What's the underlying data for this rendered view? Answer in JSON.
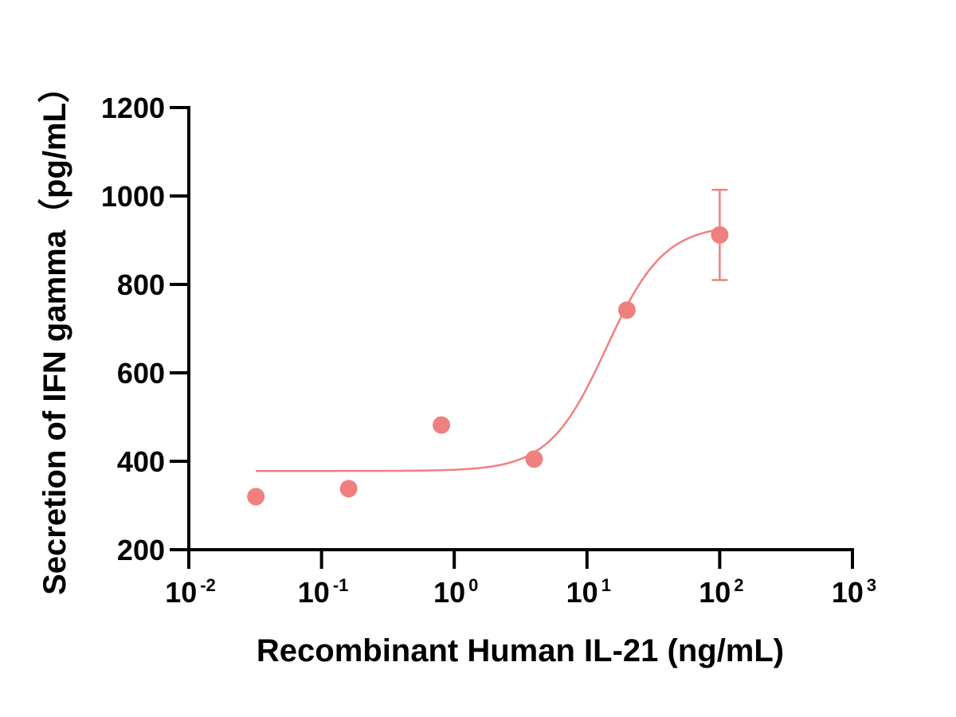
{
  "chart_data": {
    "type": "scatter",
    "xlabel": "Recombinant Human IL-21 (ng/mL)",
    "ylabel": "Secretion of IFN gamma（pg/mL）",
    "x_scale": "log10",
    "xlim": [
      0.01,
      1000
    ],
    "ylim": [
      200,
      1200
    ],
    "x_ticks": [
      {
        "base": "10",
        "exp": "-2"
      },
      {
        "base": "10",
        "exp": "-1"
      },
      {
        "base": "10",
        "exp": "0"
      },
      {
        "base": "10",
        "exp": "1"
      },
      {
        "base": "10",
        "exp": "2"
      },
      {
        "base": "10",
        "exp": "3"
      }
    ],
    "y_ticks": [
      "200",
      "400",
      "600",
      "800",
      "1000",
      "1200"
    ],
    "grid": false,
    "color": "#f08080",
    "points": [
      {
        "x": 0.032,
        "y": 320
      },
      {
        "x": 0.16,
        "y": 338
      },
      {
        "x": 0.8,
        "y": 482
      },
      {
        "x": 4,
        "y": 405
      },
      {
        "x": 20,
        "y": 742
      },
      {
        "x": 100,
        "y": 912,
        "err": 102
      }
    ],
    "fit": {
      "type": "four-parameter logistic",
      "bottom": 378,
      "top": 935,
      "ec50": 14,
      "hill": 2,
      "x_range": [
        0.032,
        100
      ]
    }
  }
}
